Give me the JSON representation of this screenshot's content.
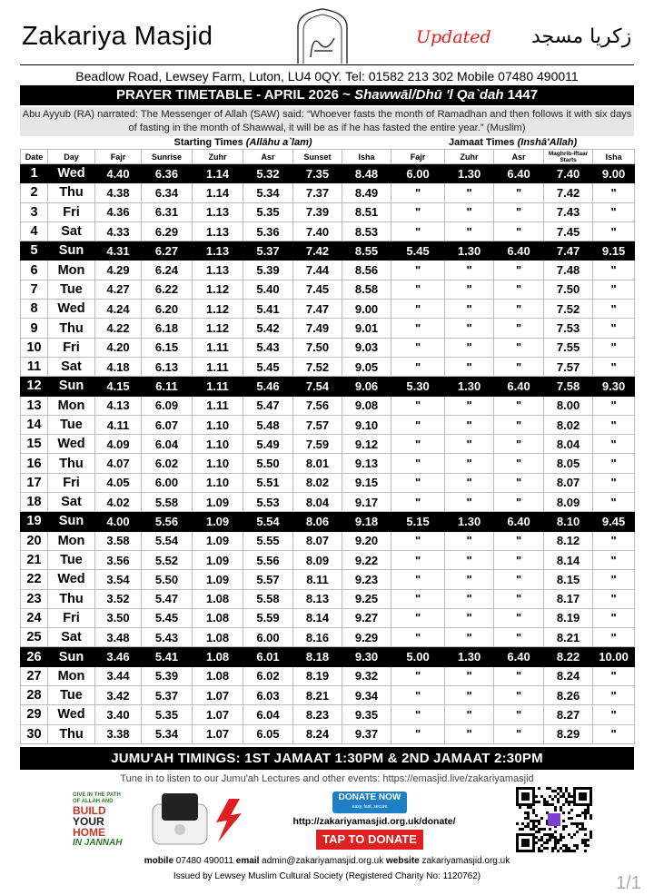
{
  "header": {
    "name": "Zakariya Masjid",
    "status": "Updated",
    "name_arabic": "زكريا مسجد",
    "address": "Beadlow Road, Lewsey Farm, Luton, LU4 0QY. Tel: 01582 213 302 Mobile 07480 490011"
  },
  "timetable_title": {
    "main": "PRAYER TIMETABLE - APRIL 2026 ~",
    "hijri": "Shawwāl/Dhū 'l Qa`dah",
    "year": "1447"
  },
  "hadith": "Abu Ayyub (RA) narrated: The Messenger of Allah (SAW) said: “Whoever fasts the month of Ramadhan and then follows it with six days of fasting in the month of Shawwal, it will be as if he has fasted the entire year.” (Muslim)",
  "table": {
    "groups": [
      {
        "label": "Starting Times",
        "note": "(Allāhu a`lam)"
      },
      {
        "label": "Jamaat Times",
        "note": "(Inshā'Allah)"
      }
    ],
    "columns": [
      "Date",
      "Day",
      "Fajr",
      "Sunrise",
      "Zuhr",
      "Asr",
      "Sunset",
      "Isha",
      "Fajr",
      "Zuhr",
      "Asr",
      "Maghrib-Iftaar Starts",
      "Isha"
    ],
    "rows": [
      [
        "1",
        "Wed",
        "4.40",
        "6.36",
        "1.14",
        "5.32",
        "7.35",
        "8.48",
        "6.00",
        "1.30",
        "6.40",
        "7.40",
        "9.00"
      ],
      [
        "2",
        "Thu",
        "4.38",
        "6.34",
        "1.14",
        "5.34",
        "7.37",
        "8.49",
        "\"",
        "\"",
        "\"",
        "7.42",
        "\""
      ],
      [
        "3",
        "Fri",
        "4.36",
        "6.31",
        "1.13",
        "5.35",
        "7.39",
        "8.51",
        "\"",
        "\"",
        "\"",
        "7.43",
        "\""
      ],
      [
        "4",
        "Sat",
        "4.33",
        "6.29",
        "1.13",
        "5.36",
        "7.40",
        "8.53",
        "\"",
        "\"",
        "\"",
        "7.45",
        "\""
      ],
      [
        "5",
        "Sun",
        "4.31",
        "6.27",
        "1.13",
        "5.37",
        "7.42",
        "8.55",
        "5.45",
        "1.30",
        "6.40",
        "7.47",
        "9.15"
      ],
      [
        "6",
        "Mon",
        "4.29",
        "6.24",
        "1.13",
        "5.39",
        "7.44",
        "8.56",
        "\"",
        "\"",
        "\"",
        "7.48",
        "\""
      ],
      [
        "7",
        "Tue",
        "4.27",
        "6.22",
        "1.12",
        "5.40",
        "7.45",
        "8.58",
        "\"",
        "\"",
        "\"",
        "7.50",
        "\""
      ],
      [
        "8",
        "Wed",
        "4.24",
        "6.20",
        "1.12",
        "5.41",
        "7.47",
        "9.00",
        "\"",
        "\"",
        "\"",
        "7.52",
        "\""
      ],
      [
        "9",
        "Thu",
        "4.22",
        "6.18",
        "1.12",
        "5.42",
        "7.49",
        "9.01",
        "\"",
        "\"",
        "\"",
        "7.53",
        "\""
      ],
      [
        "10",
        "Fri",
        "4.20",
        "6.15",
        "1.11",
        "5.43",
        "7.50",
        "9.03",
        "\"",
        "\"",
        "\"",
        "7.55",
        "\""
      ],
      [
        "11",
        "Sat",
        "4.18",
        "6.13",
        "1.11",
        "5.45",
        "7.52",
        "9.05",
        "\"",
        "\"",
        "\"",
        "7.57",
        "\""
      ],
      [
        "12",
        "Sun",
        "4.15",
        "6.11",
        "1.11",
        "5.46",
        "7.54",
        "9.06",
        "5.30",
        "1.30",
        "6.40",
        "7.58",
        "9.30"
      ],
      [
        "13",
        "Mon",
        "4.13",
        "6.09",
        "1.11",
        "5.47",
        "7.56",
        "9.08",
        "\"",
        "\"",
        "\"",
        "8.00",
        "\""
      ],
      [
        "14",
        "Tue",
        "4.11",
        "6.07",
        "1.10",
        "5.48",
        "7.57",
        "9.10",
        "\"",
        "\"",
        "\"",
        "8.02",
        "\""
      ],
      [
        "15",
        "Wed",
        "4.09",
        "6.04",
        "1.10",
        "5.49",
        "7.59",
        "9.12",
        "\"",
        "\"",
        "\"",
        "8.04",
        "\""
      ],
      [
        "16",
        "Thu",
        "4.07",
        "6.02",
        "1.10",
        "5.50",
        "8.01",
        "9.13",
        "\"",
        "\"",
        "\"",
        "8.05",
        "\""
      ],
      [
        "17",
        "Fri",
        "4.05",
        "6.00",
        "1.10",
        "5.51",
        "8.02",
        "9.15",
        "\"",
        "\"",
        "\"",
        "8.07",
        "\""
      ],
      [
        "18",
        "Sat",
        "4.02",
        "5.58",
        "1.09",
        "5.53",
        "8.04",
        "9.17",
        "\"",
        "\"",
        "\"",
        "8.09",
        "\""
      ],
      [
        "19",
        "Sun",
        "4.00",
        "5.56",
        "1.09",
        "5.54",
        "8.06",
        "9.18",
        "5.15",
        "1.30",
        "6.40",
        "8.10",
        "9.45"
      ],
      [
        "20",
        "Mon",
        "3.58",
        "5.54",
        "1.09",
        "5.55",
        "8.07",
        "9.20",
        "\"",
        "\"",
        "\"",
        "8.12",
        "\""
      ],
      [
        "21",
        "Tue",
        "3.56",
        "5.52",
        "1.09",
        "5.56",
        "8.09",
        "9.22",
        "\"",
        "\"",
        "\"",
        "8.14",
        "\""
      ],
      [
        "22",
        "Wed",
        "3.54",
        "5.50",
        "1.09",
        "5.57",
        "8.11",
        "9.23",
        "\"",
        "\"",
        "\"",
        "8.15",
        "\""
      ],
      [
        "23",
        "Thu",
        "3.52",
        "5.47",
        "1.08",
        "5.58",
        "8.13",
        "9.25",
        "\"",
        "\"",
        "\"",
        "8.17",
        "\""
      ],
      [
        "24",
        "Fri",
        "3.50",
        "5.45",
        "1.08",
        "5.59",
        "8.14",
        "9.27",
        "\"",
        "\"",
        "\"",
        "8.19",
        "\""
      ],
      [
        "25",
        "Sat",
        "3.48",
        "5.43",
        "1.08",
        "6.00",
        "8.16",
        "9.29",
        "\"",
        "\"",
        "\"",
        "8.21",
        "\""
      ],
      [
        "26",
        "Sun",
        "3.46",
        "5.41",
        "1.08",
        "6.01",
        "8.18",
        "9.30",
        "5.00",
        "1.30",
        "6.40",
        "8.22",
        "10.00"
      ],
      [
        "27",
        "Mon",
        "3.44",
        "5.39",
        "1.08",
        "6.02",
        "8.19",
        "9.32",
        "\"",
        "\"",
        "\"",
        "8.24",
        "\""
      ],
      [
        "28",
        "Tue",
        "3.42",
        "5.37",
        "1.07",
        "6.03",
        "8.21",
        "9.34",
        "\"",
        "\"",
        "\"",
        "8.26",
        "\""
      ],
      [
        "29",
        "Wed",
        "3.40",
        "5.35",
        "1.07",
        "6.04",
        "8.23",
        "9.35",
        "\"",
        "\"",
        "\"",
        "8.27",
        "\""
      ],
      [
        "30",
        "Thu",
        "3.38",
        "5.34",
        "1.07",
        "6.05",
        "8.24",
        "9.37",
        "\"",
        "\"",
        "\"",
        "8.29",
        "\""
      ]
    ]
  },
  "jumuah": "JUMU'AH TIMINGS: 1ST JAMAAT 1:30PM & 2ND JAMAAT 2:30PM",
  "footer": {
    "tune_in": "Tune in to listen to our Jumu'ah Lectures and other events: https://emasjid.live/zakariyamasjid",
    "promo": {
      "line1": "GIVE IN THE PATH",
      "line2": "OF ALLAH AND",
      "build": "BUILD",
      "your": "YOUR",
      "home": "HOME",
      "jannah": "IN JANNAH"
    },
    "donate": {
      "button": "DONATE NOW",
      "tagline": "easy, fast, secure",
      "url": "http://zakariyamasjid.org.uk/donate/",
      "tap": "TAP TO DONATE"
    },
    "contact": {
      "mobile_label": "mobile",
      "mobile": "07480 490011",
      "email_label": "email",
      "email": "admin@zakariyamasjid.org.uk",
      "website_label": "website",
      "website": "zakariyamasjid.org.uk"
    },
    "issued": "Issued by Lewsey Muslim Cultural Society (Registered Charity No: 1120762)"
  },
  "page_indicator": "1/1"
}
